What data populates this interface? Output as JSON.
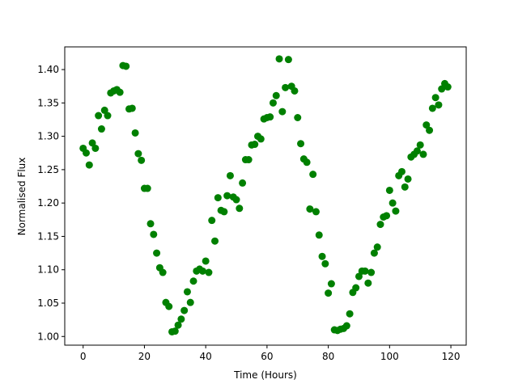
{
  "chart_data": {
    "type": "scatter",
    "x_label": "Time (Hours)",
    "y_label": "Normalised Flux",
    "color": "#008000",
    "x": [
      0,
      1,
      2,
      3,
      4,
      5,
      6,
      7,
      8,
      9,
      10,
      11,
      12,
      13,
      14,
      15,
      16,
      17,
      18,
      19,
      20,
      21,
      22,
      23,
      24,
      25,
      26,
      27,
      28,
      29,
      30,
      31,
      32,
      33,
      34,
      35,
      36,
      37,
      38,
      39,
      40,
      41,
      42,
      43,
      44,
      45,
      46,
      47,
      48,
      49,
      50,
      51,
      52,
      53,
      54,
      55,
      56,
      57,
      58,
      59,
      60,
      61,
      62,
      63,
      64,
      65,
      66,
      67,
      68,
      69,
      70,
      71,
      72,
      73,
      74,
      75,
      76,
      77,
      78,
      79,
      80,
      81,
      82,
      83,
      84,
      85,
      86,
      87,
      88,
      89,
      90,
      91,
      92,
      93,
      94,
      95,
      96,
      97,
      98,
      99,
      100,
      101,
      102,
      103,
      104,
      105,
      106,
      107,
      108,
      109,
      110,
      111,
      112,
      113,
      114,
      115,
      116,
      117,
      118,
      119
    ],
    "values": [
      1.282,
      1.275,
      1.257,
      1.29,
      1.282,
      1.331,
      1.311,
      1.339,
      1.331,
      1.365,
      1.368,
      1.37,
      1.366,
      1.406,
      1.405,
      1.341,
      1.342,
      1.305,
      1.274,
      1.264,
      1.222,
      1.222,
      1.169,
      1.153,
      1.125,
      1.103,
      1.096,
      1.051,
      1.045,
      1.007,
      1.008,
      1.017,
      1.026,
      1.039,
      1.067,
      1.051,
      1.083,
      1.098,
      1.101,
      1.098,
      1.113,
      1.096,
      1.174,
      1.143,
      1.208,
      1.189,
      1.187,
      1.211,
      1.241,
      1.209,
      1.205,
      1.192,
      1.23,
      1.265,
      1.265,
      1.287,
      1.288,
      1.3,
      1.296,
      1.326,
      1.328,
      1.329,
      1.35,
      1.361,
      1.416,
      1.337,
      1.373,
      1.415,
      1.375,
      1.368,
      1.328,
      1.289,
      1.266,
      1.261,
      1.191,
      1.243,
      1.187,
      1.152,
      1.12,
      1.109,
      1.065,
      1.079,
      1.01,
      1.009,
      1.011,
      1.012,
      1.016,
      1.034,
      1.066,
      1.073,
      1.09,
      1.098,
      1.098,
      1.08,
      1.096,
      1.125,
      1.134,
      1.168,
      1.179,
      1.181,
      1.219,
      1.2,
      1.188,
      1.241,
      1.247,
      1.224,
      1.236,
      1.269,
      1.273,
      1.278,
      1.287,
      1.273,
      1.317,
      1.309,
      1.342,
      1.358,
      1.347,
      1.371,
      1.379,
      1.374
    ],
    "xlim": [
      -6,
      125
    ],
    "ylim": [
      0.987,
      1.434
    ],
    "xticks": [
      0,
      20,
      40,
      60,
      80,
      100,
      120
    ],
    "yticks": [
      {
        "value": 1.0,
        "label": "1.00"
      },
      {
        "value": 1.05,
        "label": "1.05"
      },
      {
        "value": 1.1,
        "label": "1.10"
      },
      {
        "value": 1.15,
        "label": "1.15"
      },
      {
        "value": 1.2,
        "label": "1.20"
      },
      {
        "value": 1.25,
        "label": "1.25"
      },
      {
        "value": 1.3,
        "label": "1.30"
      },
      {
        "value": 1.35,
        "label": "1.35"
      },
      {
        "value": 1.4,
        "label": "1.40"
      }
    ]
  }
}
